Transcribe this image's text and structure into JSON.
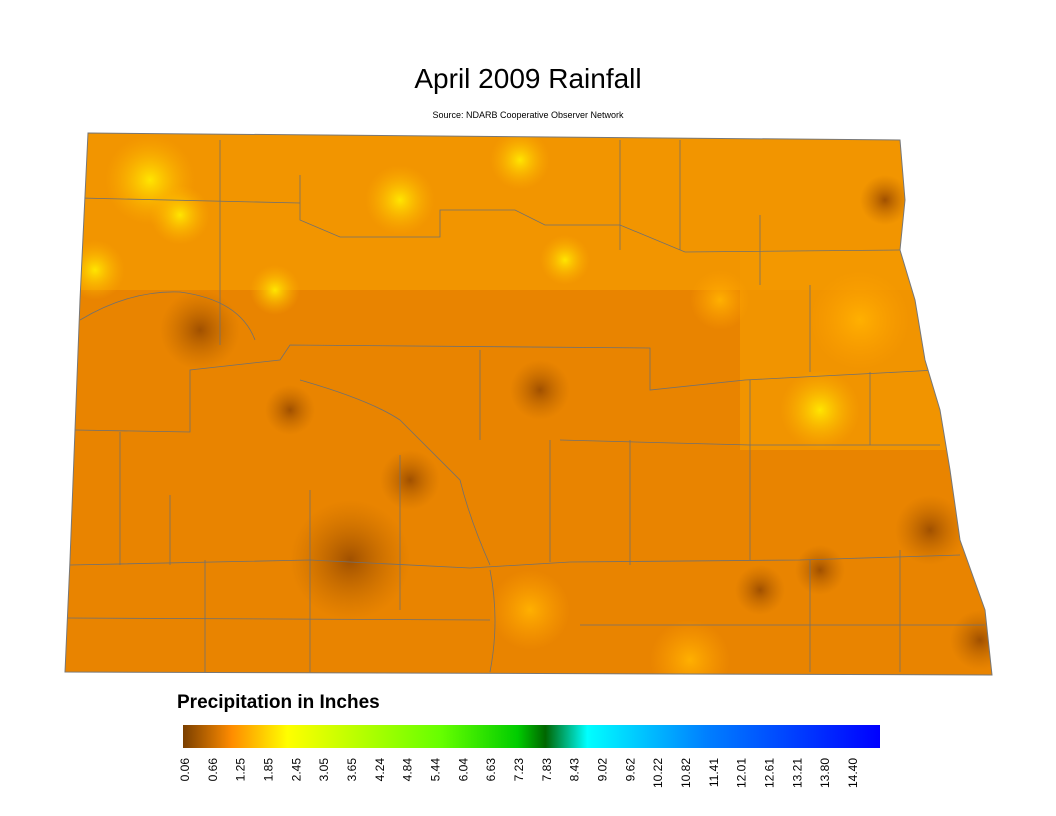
{
  "title": "April 2009 Rainfall",
  "source": "Source: NDARB Cooperative Observer Network",
  "legend": {
    "title": "Precipitation in Inches",
    "ticks": [
      "0.06",
      "0.66",
      "1.25",
      "1.85",
      "2.45",
      "3.05",
      "3.65",
      "4.24",
      "4.84",
      "5.44",
      "6.04",
      "6.63",
      "7.23",
      "7.83",
      "8.43",
      "9.02",
      "9.62",
      "10.22",
      "10.82",
      "11.41",
      "12.01",
      "12.61",
      "13.21",
      "13.80",
      "14.40"
    ]
  }
}
